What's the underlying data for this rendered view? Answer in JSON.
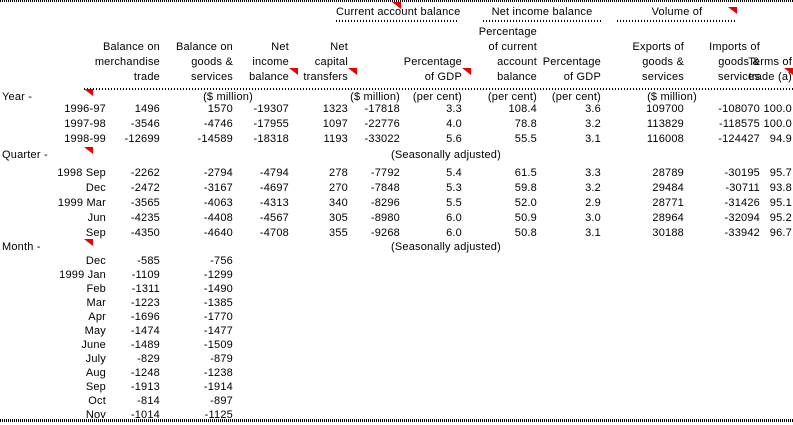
{
  "colors": {
    "marker_red": "#e80000",
    "text_black": "#000000",
    "background_white": "#ffffff"
  },
  "table": {
    "group_headers": [
      {
        "label": "Current account balance",
        "has_marker": true
      },
      {
        "label": "Net income balance",
        "has_marker": false
      },
      {
        "label": "Volume of",
        "has_marker": true
      }
    ],
    "column_headers": [
      {
        "id": "balance-merchandise-trade",
        "lines": [
          "Balance on",
          "merchandise",
          "trade"
        ],
        "has_marker": false
      },
      {
        "id": "balance-goods-services",
        "lines": [
          "Balance on",
          "goods &",
          "services"
        ],
        "has_marker": false
      },
      {
        "id": "net-income-balance",
        "lines": [
          "Net",
          "income",
          "balance"
        ],
        "has_marker": true
      },
      {
        "id": "net-capital-transfers",
        "lines": [
          "Net",
          "capital",
          "transfers"
        ],
        "has_marker": true
      },
      {
        "id": "current-account-balance-million",
        "lines": [],
        "has_marker": false
      },
      {
        "id": "current-account-pct-gdp",
        "lines": [
          "Percentage",
          "of GDP"
        ],
        "has_marker": true
      },
      {
        "id": "net-income-pct-current-account",
        "lines": [
          "Percentage",
          "of current",
          "account",
          "balance"
        ],
        "has_marker": false
      },
      {
        "id": "net-income-pct-gdp",
        "lines": [
          "Percentage",
          "of GDP"
        ],
        "has_marker": false
      },
      {
        "id": "exports-goods-services",
        "lines": [
          "Exports of",
          "goods &",
          "services"
        ],
        "has_marker": false
      },
      {
        "id": "imports-goods-services",
        "lines": [
          "Imports of",
          "goods &",
          "services"
        ],
        "has_marker": false
      },
      {
        "id": "terms-of-trade",
        "lines": [
          "Terms of",
          "trade (a)"
        ],
        "has_marker": true
      }
    ],
    "year_units": [
      "($ million)",
      "($ million)",
      "(per cent)",
      "(per cent)",
      "(per cent)",
      "($ million)"
    ],
    "sections": [
      {
        "label": "Year -",
        "note": null,
        "rows": [
          {
            "period": "1996-97",
            "values": [
              "1496",
              "1570",
              "-19307",
              "1323",
              "-17818",
              "3.3",
              "108.4",
              "3.6",
              "109700",
              "-108070",
              "100.0"
            ]
          },
          {
            "period": "1997-98",
            "values": [
              "-3546",
              "-4746",
              "-17955",
              "1097",
              "-22776",
              "4.0",
              "78.8",
              "3.2",
              "113829",
              "-118575",
              "100.0"
            ]
          },
          {
            "period": "1998-99",
            "values": [
              "-12699",
              "-14589",
              "-18318",
              "1193",
              "-33022",
              "5.6",
              "55.5",
              "3.1",
              "116008",
              "-124427",
              "94.9"
            ]
          }
        ]
      },
      {
        "label": "Quarter -",
        "note": "(Seasonally adjusted)",
        "rows": [
          {
            "period": "1998 Sep",
            "values": [
              "-2262",
              "-2794",
              "-4794",
              "278",
              "-7792",
              "5.4",
              "61.5",
              "3.3",
              "28789",
              "-30195",
              "95.7"
            ]
          },
          {
            "period": "Dec",
            "values": [
              "-2472",
              "-3167",
              "-4697",
              "270",
              "-7848",
              "5.3",
              "59.8",
              "3.2",
              "29484",
              "-30711",
              "93.8"
            ]
          },
          {
            "period": "1999 Mar",
            "values": [
              "-3565",
              "-4063",
              "-4313",
              "340",
              "-8296",
              "5.5",
              "52.0",
              "2.9",
              "28771",
              "-31426",
              "95.1"
            ]
          },
          {
            "period": "Jun",
            "values": [
              "-4235",
              "-4408",
              "-4567",
              "305",
              "-8980",
              "6.0",
              "50.9",
              "3.0",
              "28964",
              "-32094",
              "95.2"
            ]
          },
          {
            "period": "Sep",
            "values": [
              "-4350",
              "-4640",
              "-4708",
              "355",
              "-9268",
              "6.0",
              "50.8",
              "3.1",
              "30188",
              "-33942",
              "96.7"
            ]
          }
        ]
      },
      {
        "label": "Month -",
        "note": "(Seasonally adjusted)",
        "rows": [
          {
            "period": "Dec",
            "values": [
              "-585",
              "-756"
            ]
          },
          {
            "period": "1999 Jan",
            "values": [
              "-1109",
              "-1299"
            ]
          },
          {
            "period": "Feb",
            "values": [
              "-1311",
              "-1490"
            ]
          },
          {
            "period": "Mar",
            "values": [
              "-1223",
              "-1385"
            ]
          },
          {
            "period": "Apr",
            "values": [
              "-1696",
              "-1770"
            ]
          },
          {
            "period": "May",
            "values": [
              "-1474",
              "-1477"
            ]
          },
          {
            "period": "June",
            "values": [
              "-1489",
              "-1509"
            ]
          },
          {
            "period": "July",
            "values": [
              "-829",
              "-879"
            ]
          },
          {
            "period": "Aug",
            "values": [
              "-1248",
              "-1238"
            ]
          },
          {
            "period": "Sep",
            "values": [
              "-1913",
              "-1914"
            ]
          },
          {
            "period": "Oct",
            "values": [
              "-814",
              "-897"
            ]
          },
          {
            "period": "Nov",
            "values": [
              "-1014",
              "-1125"
            ]
          }
        ]
      }
    ]
  }
}
